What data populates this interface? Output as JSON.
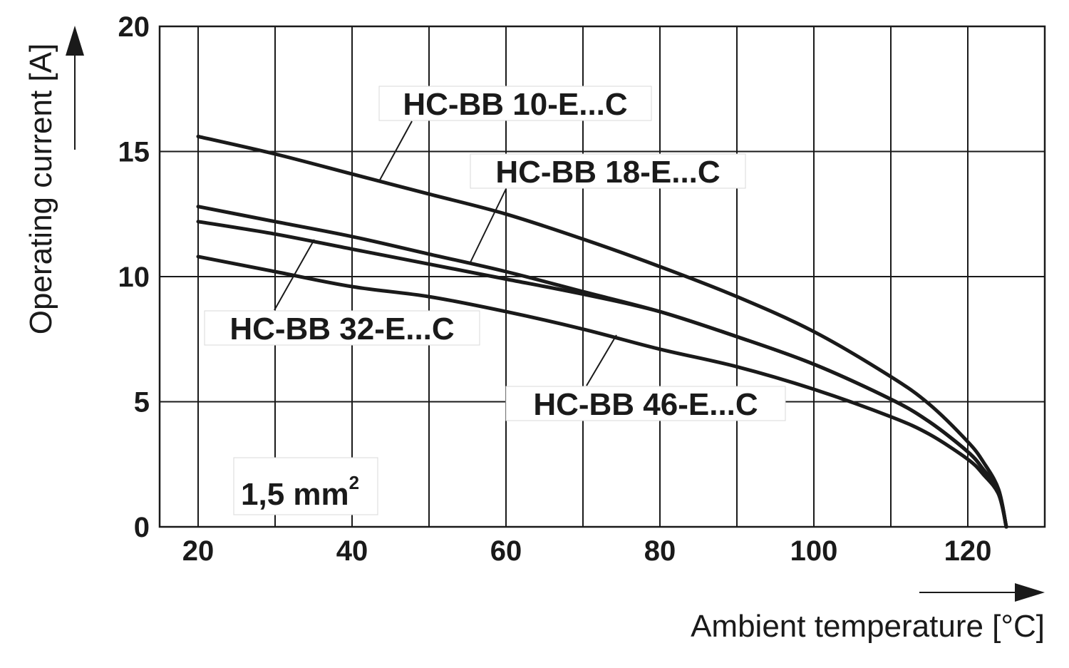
{
  "chart_data": {
    "type": "line",
    "title": "",
    "xlabel": "Ambient temperature [°C]",
    "ylabel": "Operating current [A]",
    "xlim": [
      15,
      130
    ],
    "ylim": [
      0,
      20
    ],
    "x_ticks": [
      20,
      40,
      60,
      80,
      100,
      120
    ],
    "y_ticks": [
      0,
      5,
      10,
      15,
      20
    ],
    "x_tick_labels": [
      "20",
      "40",
      "60",
      "80",
      "100",
      "120"
    ],
    "y_tick_labels": [
      "0",
      "5",
      "10",
      "15",
      "20"
    ],
    "grid": true,
    "annotation": {
      "text": "1,5 mm",
      "superscript": "2"
    },
    "series": [
      {
        "name": "HC-BB 10-E...C",
        "x": [
          20,
          30,
          40,
          50,
          60,
          70,
          80,
          90,
          100,
          110,
          115,
          120,
          122,
          124,
          125
        ],
        "y": [
          15.6,
          14.9,
          14.1,
          13.3,
          12.5,
          11.5,
          10.4,
          9.2,
          7.8,
          6.0,
          4.9,
          3.4,
          2.6,
          1.5,
          0
        ]
      },
      {
        "name": "HC-BB 18-E...C",
        "x": [
          20,
          30,
          40,
          50,
          60,
          70,
          80,
          90,
          100,
          110,
          115,
          120,
          122,
          124,
          125
        ],
        "y": [
          12.8,
          12.2,
          11.6,
          10.9,
          10.2,
          9.4,
          8.6,
          7.6,
          6.5,
          5.1,
          4.2,
          3.0,
          2.3,
          1.4,
          0
        ]
      },
      {
        "name": "HC-BB 32-E...C",
        "x": [
          20,
          30,
          40,
          50,
          60,
          70,
          80,
          90,
          100,
          110,
          115,
          120,
          122,
          124,
          125
        ],
        "y": [
          12.2,
          11.7,
          11.1,
          10.5,
          9.9,
          9.3,
          8.6,
          7.6,
          6.5,
          5.1,
          4.2,
          3.0,
          2.3,
          1.4,
          0
        ]
      },
      {
        "name": "HC-BB 46-E...C",
        "x": [
          20,
          30,
          40,
          50,
          60,
          70,
          80,
          90,
          100,
          110,
          115,
          120,
          122,
          124,
          125
        ],
        "y": [
          10.8,
          10.2,
          9.6,
          9.2,
          8.6,
          7.9,
          7.1,
          6.4,
          5.5,
          4.4,
          3.7,
          2.7,
          2.1,
          1.3,
          0
        ]
      }
    ]
  }
}
